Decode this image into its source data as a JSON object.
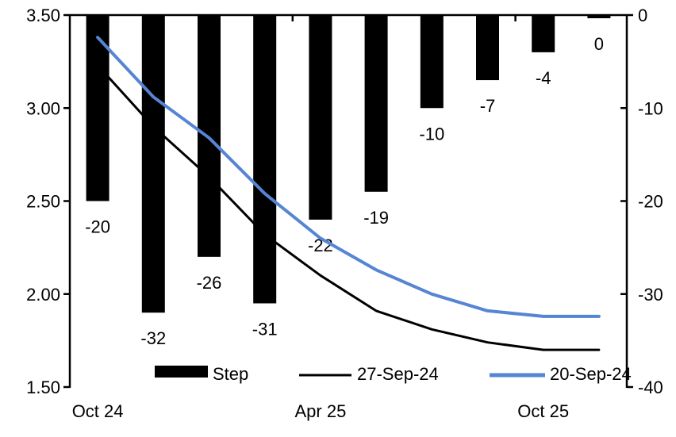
{
  "chart_data": {
    "type": "combo",
    "title": "",
    "n_categories": 10,
    "x_axis": {
      "tick_labels": [
        {
          "position": 0,
          "label": "Oct 24"
        },
        {
          "position": 4,
          "label": "Apr 25"
        },
        {
          "position": 8,
          "label": "Oct 25"
        }
      ],
      "boundary_tick_positions": [
        4,
        8
      ]
    },
    "left_axis": {
      "min": 1.5,
      "max": 3.5,
      "tick_values": [
        3.5,
        3.0,
        2.5,
        2.0,
        1.5
      ],
      "tick_labels": [
        "3.50",
        "3.00",
        "2.50",
        "2.00",
        "1.50"
      ]
    },
    "right_axis": {
      "min": -40,
      "max": 0,
      "tick_values": [
        0,
        -10,
        -20,
        -30,
        -40
      ],
      "tick_labels": [
        "0",
        "-10",
        "-20",
        "-30",
        "-40"
      ]
    },
    "series": [
      {
        "name": "Step",
        "type": "bar",
        "axis": "right",
        "color": "#000000",
        "values": [
          -20,
          -32,
          -26,
          -31,
          -22,
          -19,
          -10,
          -7,
          -4,
          0
        ],
        "data_labels": [
          "-20",
          "-32",
          "-26",
          "-31",
          "-22",
          "-19",
          "-10",
          "-7",
          "-4",
          "0"
        ]
      },
      {
        "name": "27-Sep-24",
        "type": "line",
        "axis": "left",
        "color": "#000000",
        "stroke_width": 3,
        "values": [
          3.23,
          2.9,
          2.63,
          2.32,
          2.1,
          1.91,
          1.81,
          1.74,
          1.7,
          1.7
        ]
      },
      {
        "name": "20-Sep-24",
        "type": "line",
        "axis": "left",
        "color": "#5585D3",
        "stroke_width": 4,
        "values": [
          3.38,
          3.06,
          2.84,
          2.54,
          2.3,
          2.13,
          2.0,
          1.91,
          1.88,
          1.88
        ]
      }
    ],
    "legend": {
      "position": "bottom",
      "items": [
        "Step",
        "27-Sep-24",
        "20-Sep-24"
      ]
    }
  }
}
